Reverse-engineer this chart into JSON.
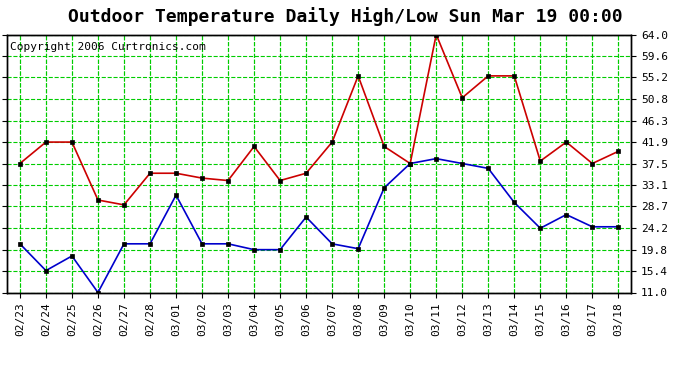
{
  "title": "Outdoor Temperature Daily High/Low Sun Mar 19 00:00",
  "copyright": "Copyright 2006 Curtronics.com",
  "dates": [
    "02/23",
    "02/24",
    "02/25",
    "02/26",
    "02/27",
    "02/28",
    "03/01",
    "03/02",
    "03/03",
    "03/04",
    "03/05",
    "03/06",
    "03/07",
    "03/08",
    "03/09",
    "03/10",
    "03/11",
    "03/12",
    "03/13",
    "03/14",
    "03/15",
    "03/16",
    "03/17",
    "03/18"
  ],
  "high_temps": [
    37.5,
    41.9,
    41.9,
    30.0,
    29.0,
    35.5,
    35.5,
    34.5,
    34.0,
    41.0,
    34.0,
    35.5,
    41.9,
    55.5,
    41.0,
    37.5,
    64.0,
    51.0,
    55.5,
    55.5,
    38.0,
    41.9,
    37.5,
    40.0
  ],
  "low_temps": [
    21.0,
    15.5,
    18.5,
    11.0,
    21.0,
    21.0,
    31.0,
    21.0,
    21.0,
    19.8,
    19.8,
    26.5,
    21.0,
    20.0,
    32.5,
    37.5,
    38.5,
    37.5,
    36.5,
    29.5,
    24.2,
    27.0,
    24.5,
    24.5
  ],
  "high_color": "#cc0000",
  "low_color": "#0000cc",
  "marker_color": "#000000",
  "bg_color": "#ffffff",
  "plot_bg_color": "#ffffff",
  "grid_color": "#00cc00",
  "border_color": "#000000",
  "ylim": [
    11.0,
    64.0
  ],
  "yticks": [
    11.0,
    15.4,
    19.8,
    24.2,
    28.7,
    33.1,
    37.5,
    41.9,
    46.3,
    50.8,
    55.2,
    59.6,
    64.0
  ],
  "title_fontsize": 13,
  "copyright_fontsize": 8,
  "tick_fontsize": 8,
  "marker_size": 3,
  "line_width": 1.2
}
